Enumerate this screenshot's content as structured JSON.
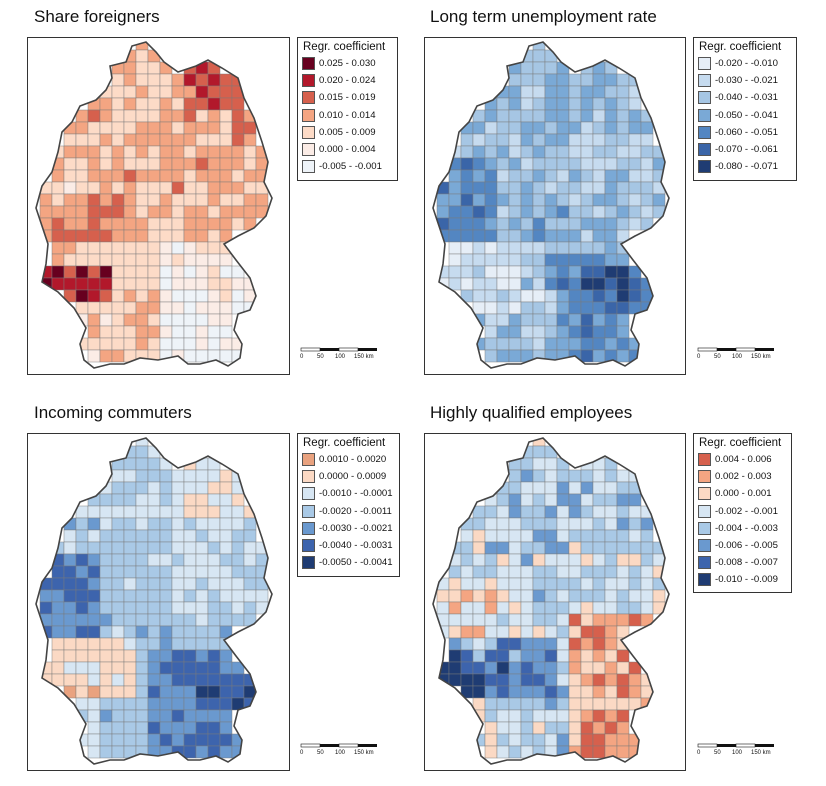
{
  "legend_title": "Regr. coefficient",
  "scale_labels": [
    "0",
    "50",
    "100",
    "150 km"
  ],
  "panels": [
    {
      "title": "Share foreigners",
      "colors": [
        "#67001f",
        "#b2182b",
        "#d6604d",
        "#f4a582",
        "#fddbc7",
        "#fbece6",
        "#eef3f8"
      ],
      "legend": [
        "0.025 - 0.030",
        "0.020 - 0.024",
        "0.015 - 0.019",
        "0.010 - 0.014",
        "0.005 - 0.009",
        "0.000 - 0.004",
        "-0.005 - -0.001"
      ]
    },
    {
      "title": "Long term unemployment rate",
      "colors": [
        "#e6eef7",
        "#c6dbef",
        "#a6c6e4",
        "#7aa9d6",
        "#5386c2",
        "#3a65a8",
        "#1f3c73"
      ],
      "legend": [
        "-0.020 - -0.010",
        "-0.030 - -0.021",
        "-0.040 - -0.031",
        "-0.050 - -0.041",
        "-0.060 - -0.051",
        "-0.070 - -0.061",
        "-0.080 - -0.071"
      ]
    },
    {
      "title": "Incoming commuters",
      "colors": [
        "#e9a27f",
        "#fbd9c4",
        "#d7e6f3",
        "#a9c9e6",
        "#6a99cf",
        "#3d64ad",
        "#1f3c73"
      ],
      "legend": [
        "0.0010 - 0.0020",
        "0.0000 - 0.0009",
        "-0.0010 - -0.0001",
        "-0.0020 - -0.0011",
        "-0.0030 - -0.0021",
        "-0.0040 - -0.0031",
        "-0.0050 - -0.0041"
      ]
    },
    {
      "title": "Highly qualified employees",
      "colors": [
        "#d6604d",
        "#f4a582",
        "#fbd9c4",
        "#d7e6f3",
        "#a9c9e6",
        "#6a99cf",
        "#3d64ad",
        "#1f3c73"
      ],
      "legend": [
        "0.004 - 0.006",
        "0.002 - 0.003",
        "0.000 - 0.001",
        "-0.002 - -0.001",
        "-0.004 - -0.003",
        "-0.006 - -0.005",
        "-0.008 - -0.007",
        "-0.010 - -0.009"
      ]
    }
  ]
}
